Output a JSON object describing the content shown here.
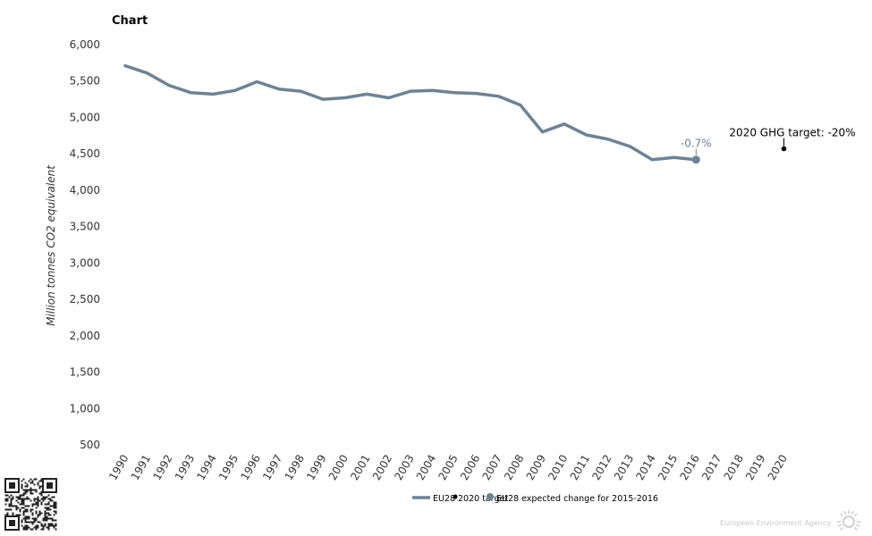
{
  "chart_data": {
    "type": "line",
    "title": "Chart",
    "ylabel": "Million tonnes CO2 equivalent",
    "xlabel": "",
    "x": [
      "1990",
      "1991",
      "1992",
      "1993",
      "1994",
      "1995",
      "1996",
      "1997",
      "1998",
      "1999",
      "2000",
      "2001",
      "2002",
      "2003",
      "2004",
      "2005",
      "2006",
      "2007",
      "2008",
      "2009",
      "2010",
      "2011",
      "2012",
      "2013",
      "2014",
      "2015",
      "2016",
      "2017",
      "2018",
      "2019",
      "2020"
    ],
    "ylim": [
      500,
      6000
    ],
    "yticks": [
      500,
      1000,
      1500,
      2000,
      2500,
      3000,
      3500,
      4000,
      4500,
      5000,
      5500,
      6000
    ],
    "ytick_labels": [
      "500",
      "1,000",
      "1,500",
      "2,000",
      "2,500",
      "3,000",
      "3,500",
      "4,000",
      "4,500",
      "5,000",
      "5,500",
      "6,000"
    ],
    "grid": false,
    "legend_position": "bottom-center",
    "series": [
      {
        "name": "EU28",
        "color": "#6b8396",
        "values": [
          5710,
          5610,
          5440,
          5340,
          5320,
          5370,
          5490,
          5390,
          5360,
          5250,
          5270,
          5320,
          5270,
          5360,
          5370,
          5340,
          5330,
          5290,
          5170,
          4800,
          4910,
          4760,
          4700,
          4600,
          4420,
          4450,
          4420,
          null,
          null,
          null,
          null
        ]
      }
    ],
    "target": {
      "name": "2020 target",
      "x": "2020",
      "y": 4570,
      "label": "2020 GHG target: -20%",
      "color": "#000000"
    },
    "expected_change": {
      "name": "EU28 expected change for 2015-2016",
      "x": "2016",
      "y": 4420,
      "label": "-0.7%",
      "color": "#6b8396"
    }
  },
  "credit": "European Environment Agency"
}
